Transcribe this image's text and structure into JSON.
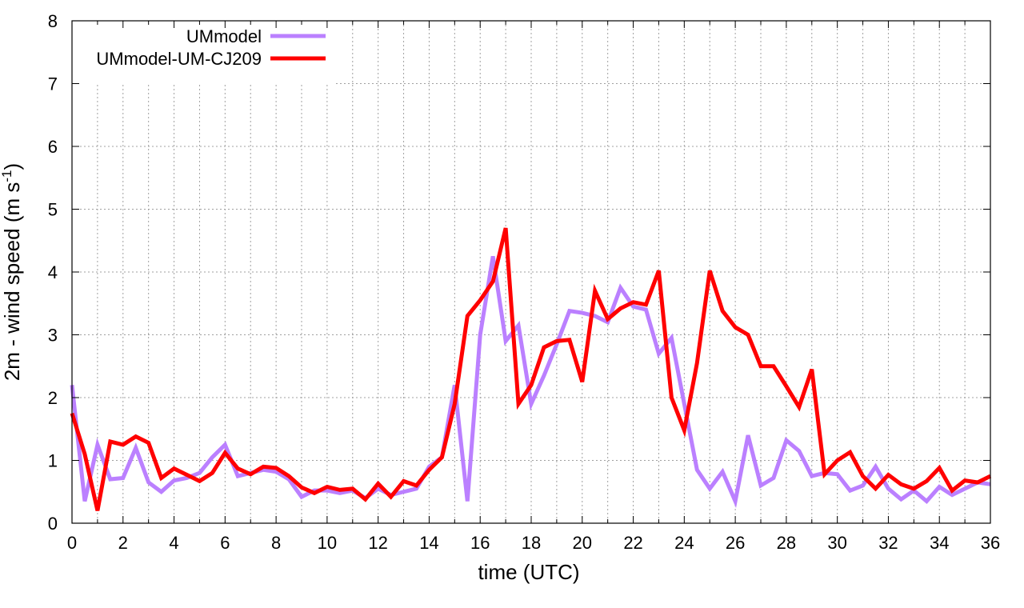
{
  "chart_data": {
    "type": "line",
    "xlabel": "time (UTC)",
    "ylabel": {
      "main": "2m - wind speed  (m s",
      "sup": "-1",
      "tail": ")"
    },
    "xlim": [
      0,
      36
    ],
    "ylim": [
      0,
      8
    ],
    "xticks": [
      0,
      2,
      4,
      6,
      8,
      10,
      12,
      14,
      16,
      18,
      20,
      22,
      24,
      26,
      28,
      30,
      32,
      34,
      36
    ],
    "yticks": [
      0,
      1,
      2,
      3,
      4,
      5,
      6,
      7,
      8
    ],
    "grid": true,
    "legend_position": "top-left",
    "x": [
      0,
      0.5,
      1,
      1.5,
      2,
      2.5,
      3,
      3.5,
      4,
      4.5,
      5,
      5.5,
      6,
      6.5,
      7,
      7.5,
      8,
      8.5,
      9,
      9.5,
      10,
      10.5,
      11,
      11.5,
      12,
      12.5,
      13,
      13.5,
      14,
      14.5,
      15,
      15.5,
      16,
      16.5,
      17,
      17.5,
      18,
      18.5,
      19,
      19.5,
      20,
      20.5,
      21,
      21.5,
      22,
      22.5,
      23,
      23.5,
      24,
      24.5,
      25,
      25.5,
      26,
      26.5,
      27,
      27.5,
      28,
      28.5,
      29,
      29.5,
      30,
      30.5,
      31,
      31.5,
      32,
      32.5,
      33,
      33.5,
      34,
      34.5,
      35,
      35.5,
      36
    ],
    "series": [
      {
        "name": "UMmodel",
        "color": "#bb80ff",
        "values": [
          2.2,
          0.35,
          1.25,
          0.7,
          0.72,
          1.2,
          0.65,
          0.5,
          0.68,
          0.72,
          0.8,
          1.05,
          1.25,
          0.75,
          0.8,
          0.85,
          0.82,
          0.7,
          0.42,
          0.52,
          0.52,
          0.48,
          0.52,
          0.4,
          0.55,
          0.45,
          0.5,
          0.55,
          0.9,
          1.05,
          2.2,
          0.35,
          3.0,
          4.25,
          2.9,
          3.15,
          1.9,
          2.35,
          2.85,
          3.38,
          3.35,
          3.3,
          3.2,
          3.75,
          3.45,
          3.4,
          2.7,
          2.95,
          1.9,
          0.85,
          0.55,
          0.82,
          0.35,
          1.4,
          0.6,
          0.72,
          1.32,
          1.15,
          0.75,
          0.8,
          0.78,
          0.52,
          0.6,
          0.9,
          0.55,
          0.38,
          0.52,
          0.35,
          0.58,
          0.45,
          0.55,
          0.65,
          0.62
        ]
      },
      {
        "name": "UMmodel-UM-CJ209",
        "color": "#ff0000",
        "values": [
          1.75,
          1.1,
          0.2,
          1.3,
          1.25,
          1.38,
          1.28,
          0.72,
          0.87,
          0.77,
          0.67,
          0.8,
          1.12,
          0.87,
          0.78,
          0.9,
          0.88,
          0.75,
          0.57,
          0.48,
          0.58,
          0.53,
          0.55,
          0.38,
          0.63,
          0.42,
          0.67,
          0.6,
          0.85,
          1.05,
          1.9,
          3.3,
          3.55,
          3.85,
          4.7,
          1.9,
          2.2,
          2.8,
          2.9,
          2.92,
          2.25,
          3.7,
          3.25,
          3.42,
          3.52,
          3.48,
          4.02,
          2.0,
          1.48,
          2.55,
          4.02,
          3.38,
          3.12,
          3.0,
          2.5,
          2.5,
          2.18,
          1.85,
          2.45,
          0.78,
          1.0,
          1.13,
          0.75,
          0.55,
          0.77,
          0.62,
          0.55,
          0.67,
          0.88,
          0.52,
          0.68,
          0.65,
          0.75
        ]
      }
    ]
  }
}
